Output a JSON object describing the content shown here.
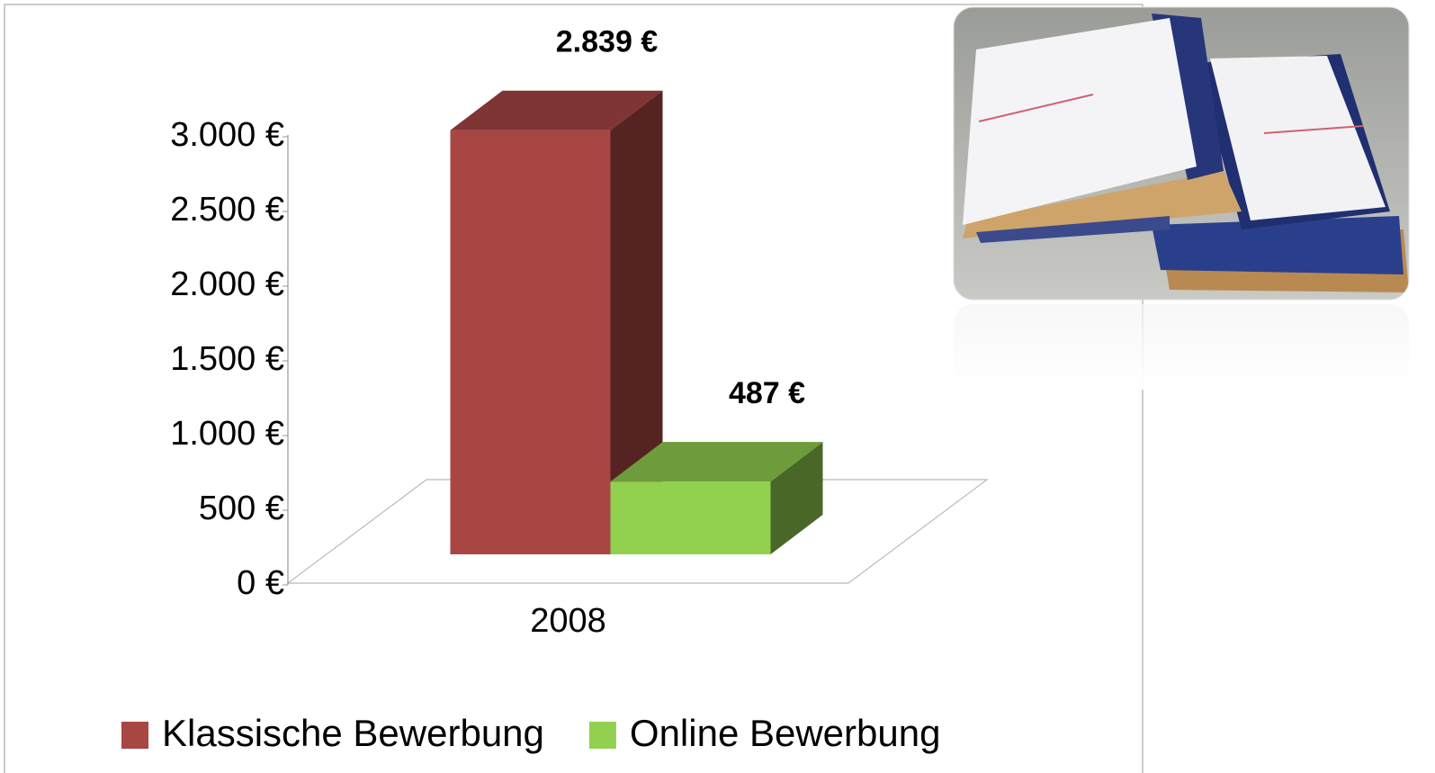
{
  "chart_data": {
    "type": "bar",
    "categories": [
      "2008"
    ],
    "series": [
      {
        "name": "Klassische Bewerbung",
        "color": "#a84644",
        "values": [
          2839
        ],
        "value_labels": [
          "2.839 €"
        ]
      },
      {
        "name": "Online Bewerbung",
        "color": "#92d050",
        "values": [
          487
        ],
        "value_labels": [
          "487 €"
        ]
      }
    ],
    "ylim": [
      0,
      3000
    ],
    "yticks": [
      {
        "value": 0,
        "label": "0 €"
      },
      {
        "value": 500,
        "label": "500 €"
      },
      {
        "value": 1000,
        "label": "1.000 €"
      },
      {
        "value": 1500,
        "label": "1.500 €"
      },
      {
        "value": 2000,
        "label": "2.000 €"
      },
      {
        "value": 2500,
        "label": "2.500 €"
      },
      {
        "value": 3000,
        "label": "3.000 €"
      }
    ],
    "grid": false,
    "legend": "bottom"
  }
}
